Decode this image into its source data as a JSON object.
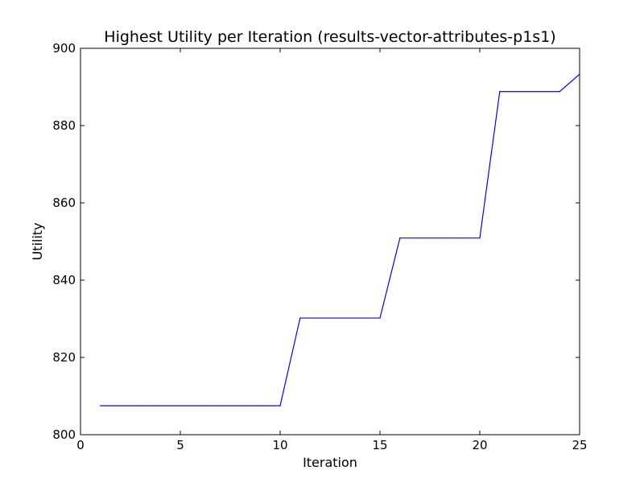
{
  "chart_data": {
    "type": "line",
    "title": "Highest Utility per Iteration (results-vector-attributes-p1s1)",
    "xlabel": "Iteration",
    "ylabel": "Utility",
    "xlim": [
      0,
      25
    ],
    "ylim": [
      800,
      900
    ],
    "xticks": [
      0,
      5,
      10,
      15,
      20,
      25
    ],
    "yticks": [
      800,
      820,
      840,
      860,
      880,
      900
    ],
    "grid": false,
    "legend": "none",
    "series": [
      {
        "color": "#0000ff",
        "x": [
          1,
          2,
          3,
          4,
          5,
          6,
          7,
          8,
          9,
          10,
          11,
          12,
          13,
          14,
          15,
          16,
          17,
          18,
          19,
          20,
          21,
          22,
          23,
          24,
          25
        ],
        "y": [
          807.5,
          807.5,
          807.5,
          807.5,
          807.5,
          807.5,
          807.5,
          807.5,
          807.5,
          807.5,
          830.2,
          830.2,
          830.2,
          830.2,
          830.2,
          850.9,
          850.9,
          850.9,
          850.9,
          850.9,
          888.8,
          888.8,
          888.8,
          888.8,
          893.3
        ]
      }
    ]
  }
}
